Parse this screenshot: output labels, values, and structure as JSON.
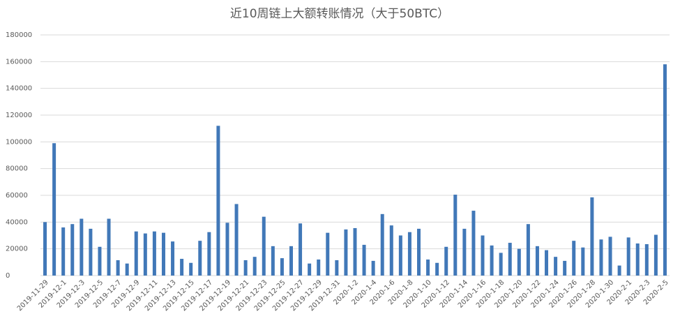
{
  "chart_data": {
    "type": "bar",
    "title": "近10周链上大额转账情况（大于50BTC）",
    "categories": [
      "2019-11-29",
      null,
      "2019-12-1",
      null,
      "2019-12-3",
      null,
      "2019-12-5",
      null,
      "2019-12-7",
      null,
      "2019-12-9",
      null,
      "2019-12-11",
      null,
      "2019-12-13",
      null,
      "2019-12-15",
      null,
      "2019-12-17",
      null,
      "2019-12-19",
      null,
      "2019-12-21",
      null,
      "2019-12-23",
      null,
      "2019-12-25",
      null,
      "2019-12-27",
      null,
      "2019-12-29",
      null,
      "2019-12-31",
      null,
      "2020-1-2",
      null,
      "2020-1-4",
      null,
      "2020-1-6",
      null,
      "2020-1-8",
      null,
      "2020-1-10",
      null,
      "2020-1-12",
      null,
      "2020-1-14",
      null,
      "2020-1-16",
      null,
      "2020-1-18",
      null,
      "2020-1-20",
      null,
      "2020-1-22",
      null,
      "2020-1-24",
      null,
      "2020-1-26",
      null,
      "2020-1-28",
      null,
      "2020-1-30",
      null,
      "2020-2-1",
      null,
      "2020-2-3",
      null,
      "2020-2-5"
    ],
    "values": [
      40000,
      99000,
      36000,
      38500,
      42500,
      35000,
      21500,
      42500,
      11500,
      9000,
      33000,
      31500,
      33000,
      32000,
      25500,
      12500,
      9500,
      26000,
      32500,
      112000,
      39500,
      53500,
      11500,
      14000,
      44000,
      22000,
      13000,
      22000,
      39000,
      9000,
      12000,
      32000,
      11500,
      34500,
      35500,
      23000,
      11000,
      46000,
      37500,
      30000,
      32500,
      35000,
      12000,
      9500,
      21500,
      60500,
      35000,
      48500,
      30000,
      22500,
      17000,
      24500,
      20000,
      38500,
      22000,
      19000,
      14000,
      11000,
      26000,
      21000,
      58500,
      27000,
      29000,
      7500,
      28500,
      24000,
      23500,
      30500,
      158000
    ],
    "color": "#4178b8",
    "ylim": [
      0,
      180000
    ],
    "yticks": [
      0,
      20000,
      40000,
      60000,
      80000,
      100000,
      120000,
      140000,
      160000,
      180000
    ],
    "grid": true
  }
}
